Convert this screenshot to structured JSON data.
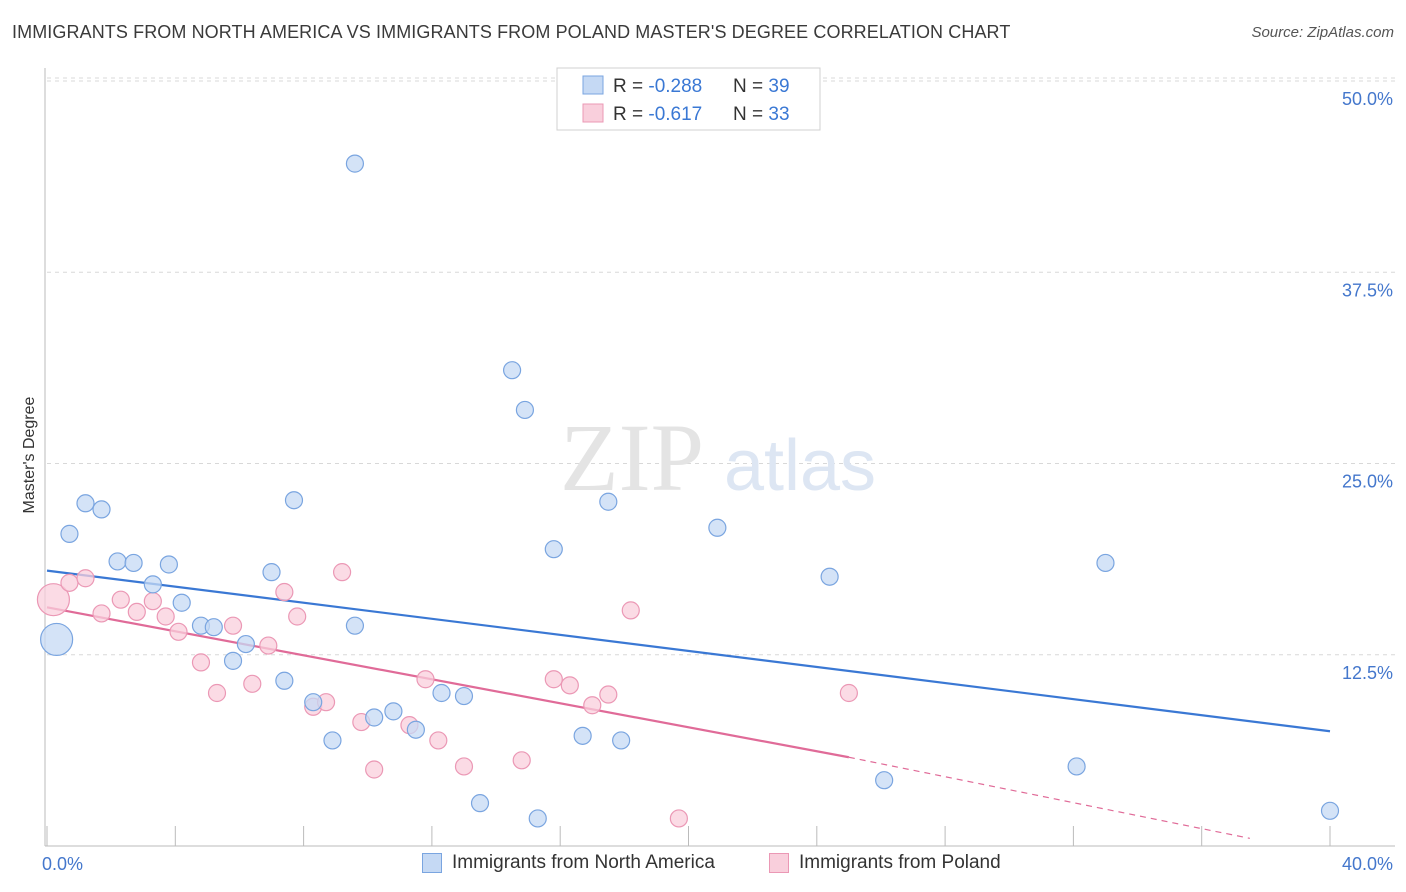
{
  "title": "IMMIGRANTS FROM NORTH AMERICA VS IMMIGRANTS FROM POLAND MASTER'S DEGREE CORRELATION CHART",
  "source": "Source: ZipAtlas.com",
  "watermark": {
    "zip": "ZIP",
    "atlas": "atlas"
  },
  "colors": {
    "blue": "#3a78d4",
    "blue_fill": "#c5d9f4",
    "blue_stroke": "#7aa5e0",
    "pink": "#e06b98",
    "pink_fill": "#f9cfdc",
    "pink_stroke": "#eb98b5",
    "axis_label": "#4477cc",
    "grid": "#d8d8d8"
  },
  "legend": {
    "row1": {
      "r_label": "R = ",
      "r_value": "-0.288",
      "n_label": "N = ",
      "n_value": "39"
    },
    "row2": {
      "r_label": "R = ",
      "r_value": "-0.617",
      "n_label": "N = ",
      "n_value": "33"
    }
  },
  "chart_data": {
    "type": "scatter",
    "title": "IMMIGRANTS FROM NORTH AMERICA VS IMMIGRANTS FROM POLAND MASTER'S DEGREE CORRELATION CHART",
    "xlabel": "",
    "ylabel": "Master's Degree",
    "xlim": [
      0,
      40
    ],
    "ylim": [
      0,
      52
    ],
    "x_tick_labels": [
      {
        "value": 0,
        "label": "0.0%"
      },
      {
        "value": 40,
        "label": "40.0%"
      }
    ],
    "y_tick_labels": [
      {
        "value": 12.5,
        "label": "12.5%"
      },
      {
        "value": 25,
        "label": "25.0%"
      },
      {
        "value": 37.5,
        "label": "37.5%"
      },
      {
        "value": 50,
        "label": "50.0%"
      }
    ],
    "series": [
      {
        "name": "Immigrants from North America",
        "color": "#3a78d4",
        "r": -0.288,
        "n": 39,
        "trend": {
          "x0": 0,
          "y0": 18.0,
          "x1": 40,
          "y1": 7.5
        },
        "points": [
          {
            "x": 0.3,
            "y": 13.5,
            "big": true
          },
          {
            "x": 0.7,
            "y": 20.4
          },
          {
            "x": 1.2,
            "y": 22.4
          },
          {
            "x": 1.7,
            "y": 22.0
          },
          {
            "x": 2.2,
            "y": 18.6
          },
          {
            "x": 2.7,
            "y": 18.5
          },
          {
            "x": 3.3,
            "y": 17.1
          },
          {
            "x": 3.8,
            "y": 18.4
          },
          {
            "x": 4.2,
            "y": 15.9
          },
          {
            "x": 4.8,
            "y": 14.4
          },
          {
            "x": 5.2,
            "y": 14.3
          },
          {
            "x": 5.8,
            "y": 12.1
          },
          {
            "x": 6.2,
            "y": 13.2
          },
          {
            "x": 7.0,
            "y": 17.9
          },
          {
            "x": 7.4,
            "y": 10.8
          },
          {
            "x": 7.7,
            "y": 22.6
          },
          {
            "x": 8.3,
            "y": 9.4
          },
          {
            "x": 8.9,
            "y": 6.9
          },
          {
            "x": 9.6,
            "y": 44.6
          },
          {
            "x": 9.6,
            "y": 14.4
          },
          {
            "x": 10.2,
            "y": 8.4
          },
          {
            "x": 10.8,
            "y": 8.8
          },
          {
            "x": 11.5,
            "y": 7.6
          },
          {
            "x": 12.3,
            "y": 10.0
          },
          {
            "x": 13.0,
            "y": 9.8
          },
          {
            "x": 13.5,
            "y": 2.8
          },
          {
            "x": 14.5,
            "y": 31.1
          },
          {
            "x": 14.9,
            "y": 28.5
          },
          {
            "x": 15.3,
            "y": 1.8
          },
          {
            "x": 15.8,
            "y": 19.4
          },
          {
            "x": 16.7,
            "y": 7.2
          },
          {
            "x": 17.5,
            "y": 22.5
          },
          {
            "x": 17.9,
            "y": 6.9
          },
          {
            "x": 20.9,
            "y": 20.8
          },
          {
            "x": 24.4,
            "y": 17.6
          },
          {
            "x": 26.1,
            "y": 4.3
          },
          {
            "x": 32.1,
            "y": 5.2
          },
          {
            "x": 33.0,
            "y": 18.5
          },
          {
            "x": 40.0,
            "y": 2.3
          }
        ]
      },
      {
        "name": "Immigrants from Poland",
        "color": "#e06b98",
        "r": -0.617,
        "n": 33,
        "trend": {
          "x0": 0,
          "y0": 15.6,
          "x1": 25.0,
          "y1": 5.8
        },
        "trend_dashed": {
          "x0": 25.0,
          "y0": 5.8,
          "x1": 37.5,
          "y1": 0.5
        },
        "points": [
          {
            "x": 0.2,
            "y": 16.1,
            "big": true
          },
          {
            "x": 0.7,
            "y": 17.2
          },
          {
            "x": 1.2,
            "y": 17.5
          },
          {
            "x": 1.7,
            "y": 15.2
          },
          {
            "x": 2.3,
            "y": 16.1
          },
          {
            "x": 2.8,
            "y": 15.3
          },
          {
            "x": 3.3,
            "y": 16.0
          },
          {
            "x": 3.7,
            "y": 15.0
          },
          {
            "x": 4.1,
            "y": 14.0
          },
          {
            "x": 4.8,
            "y": 12.0
          },
          {
            "x": 5.3,
            "y": 10.0
          },
          {
            "x": 5.8,
            "y": 14.4
          },
          {
            "x": 6.4,
            "y": 10.6
          },
          {
            "x": 6.9,
            "y": 13.1
          },
          {
            "x": 7.4,
            "y": 16.6
          },
          {
            "x": 7.8,
            "y": 15.0
          },
          {
            "x": 8.3,
            "y": 9.1
          },
          {
            "x": 8.7,
            "y": 9.4
          },
          {
            "x": 9.2,
            "y": 17.9
          },
          {
            "x": 9.8,
            "y": 8.1
          },
          {
            "x": 10.2,
            "y": 5.0
          },
          {
            "x": 11.3,
            "y": 7.9
          },
          {
            "x": 11.8,
            "y": 10.9
          },
          {
            "x": 12.2,
            "y": 6.9
          },
          {
            "x": 13.0,
            "y": 5.2
          },
          {
            "x": 14.8,
            "y": 5.6
          },
          {
            "x": 15.8,
            "y": 10.9
          },
          {
            "x": 16.3,
            "y": 10.5
          },
          {
            "x": 17.0,
            "y": 9.2
          },
          {
            "x": 17.5,
            "y": 9.9
          },
          {
            "x": 18.2,
            "y": 15.4
          },
          {
            "x": 19.7,
            "y": 1.8
          },
          {
            "x": 25.0,
            "y": 10.0
          }
        ]
      }
    ]
  }
}
